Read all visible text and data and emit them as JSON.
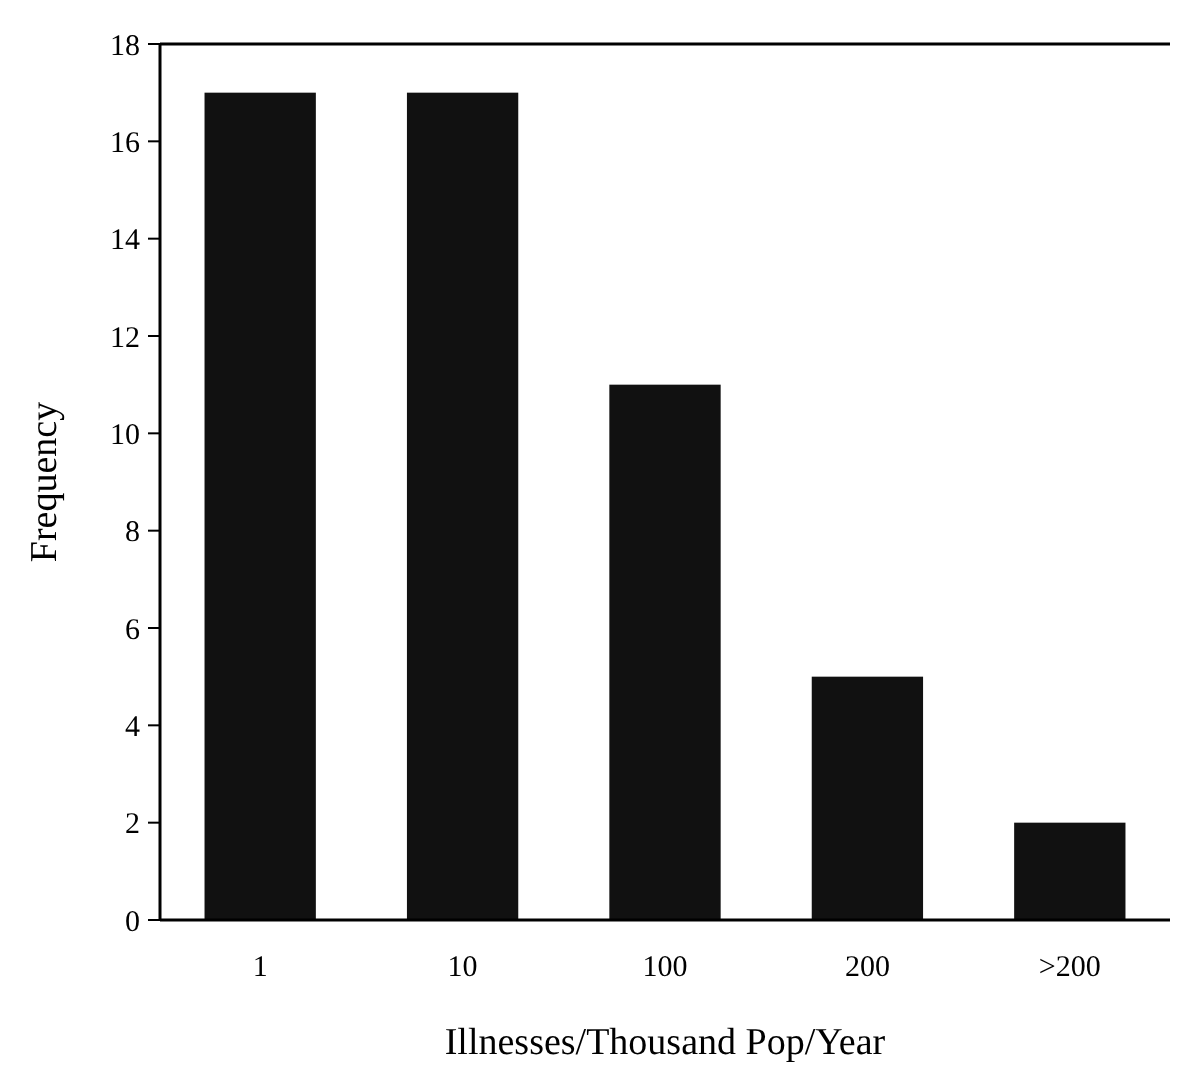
{
  "chart_data": {
    "type": "bar",
    "xlabel": "Illnesses/Thousand Pop/Year",
    "ylabel": "Frequency",
    "categories": [
      "1",
      "10",
      "100",
      "200",
      ">200"
    ],
    "values": [
      17,
      17,
      11,
      5,
      2
    ],
    "color": "#111111",
    "ylim": [
      0,
      18
    ],
    "yticks": [
      0,
      2,
      4,
      6,
      8,
      10,
      12,
      14,
      16,
      18
    ],
    "grid": false
  }
}
